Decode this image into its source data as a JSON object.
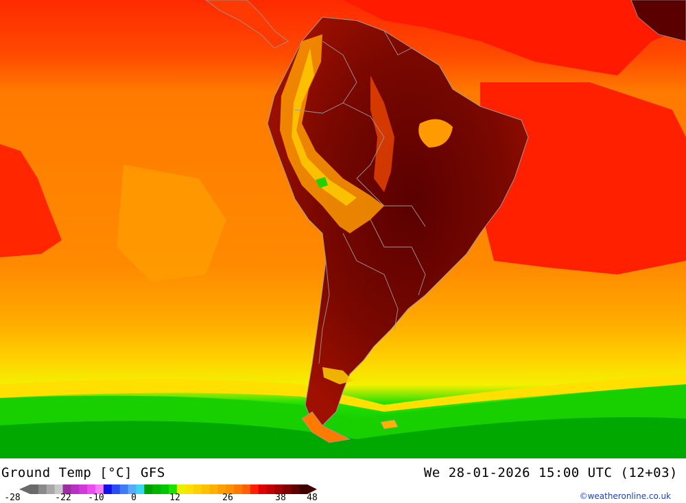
{
  "map": {
    "region": "South America",
    "colors": {
      "ocean_warm": "#ff7a00",
      "ocean_hot": "#ff1a00",
      "ocean_mild": "#ffa800",
      "cool_yellow": "#ffe000",
      "cold_green": "#12d400",
      "land_hot": "#7a0000",
      "land_very_hot": "#4a0000",
      "highlands": "#ffb000",
      "borders": "#9a9a9a"
    }
  },
  "footer": {
    "title": "Ground Temp [°C] GFS",
    "valid_time": "We 28-01-2026 15:00 UTC (12+03)",
    "credit": "©weatheronline.co.uk"
  },
  "legend": {
    "ticks": [
      "-28",
      "-22",
      "-10",
      "0",
      "12",
      "26",
      "38",
      "48"
    ],
    "swatches": [
      "#6a6a6a",
      "#8a8a8a",
      "#a8a8a8",
      "#c8c8c8",
      "#9b2fa0",
      "#b632c0",
      "#d23ad8",
      "#ec4cf0",
      "#f47cf8",
      "#1010e8",
      "#2a4cf0",
      "#3f7cf4",
      "#5aa8f8",
      "#3ad8f0",
      "#00a000",
      "#00b400",
      "#00c800",
      "#20e000",
      "#e8f000",
      "#ffe000",
      "#ffd000",
      "#ffc000",
      "#ffb000",
      "#ffa000",
      "#ff9000",
      "#ff7800",
      "#ff6000",
      "#ff2000",
      "#e00000",
      "#c00000",
      "#a00000",
      "#800000",
      "#600000",
      "#400000"
    ]
  }
}
